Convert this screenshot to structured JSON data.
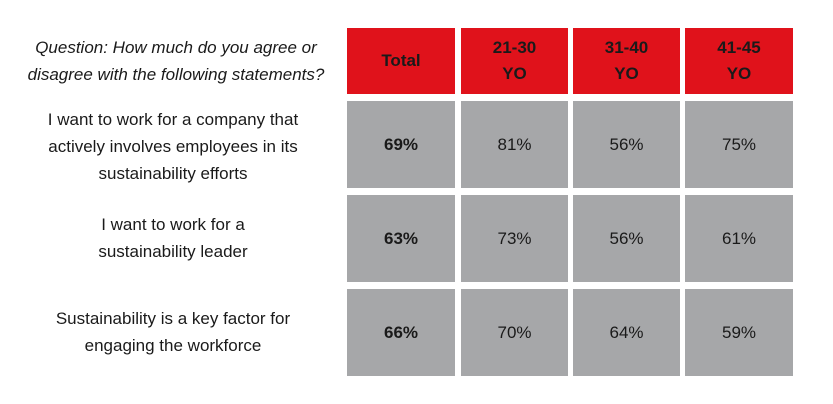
{
  "question": {
    "line1": "Question: How much do you agree or",
    "line2": "disagree with the following statements?"
  },
  "chart_data": {
    "type": "table",
    "title": "",
    "columns": [
      {
        "line1": "Total",
        "line2": ""
      },
      {
        "line1": "21-30",
        "line2": "YO"
      },
      {
        "line1": "31-40",
        "line2": "YO"
      },
      {
        "line1": "41-45",
        "line2": "YO"
      }
    ],
    "rows": [
      {
        "label_lines": [
          "I want to work for a company that",
          "actively involves employees in its",
          "sustainability efforts"
        ],
        "values": [
          "69%",
          "81%",
          "56%",
          "75%"
        ]
      },
      {
        "label_lines": [
          "I want to work for a",
          "sustainability leader"
        ],
        "values": [
          "63%",
          "73%",
          "56%",
          "61%"
        ]
      },
      {
        "label_lines": [
          "Sustainability is a key factor for",
          "engaging the workforce"
        ],
        "values": [
          "66%",
          "70%",
          "64%",
          "59%"
        ]
      }
    ],
    "colors": {
      "header": "#e0121b",
      "cell": "#a6a7a9"
    }
  }
}
